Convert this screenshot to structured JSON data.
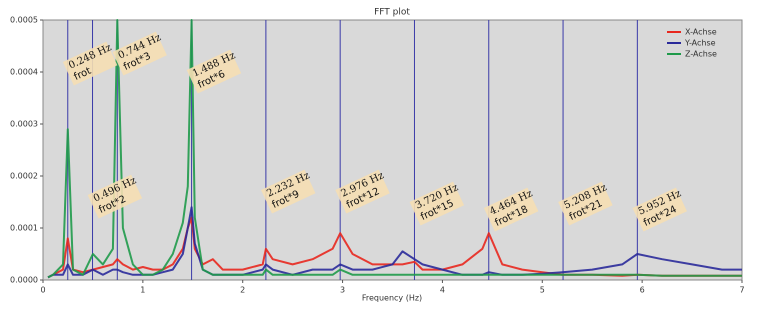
{
  "chart_data": {
    "type": "line",
    "title": "FFT plot",
    "xlabel": "Frequency (Hz)",
    "xlim": [
      0,
      7
    ],
    "xticks": [
      0,
      1,
      2,
      3,
      4,
      5,
      6,
      7
    ],
    "ylim": [
      0,
      0.0005
    ],
    "yticks": [
      {
        "value": 0,
        "label": "0.0000"
      },
      {
        "value": 0.0001,
        "label": "0.0001"
      },
      {
        "value": 0.0002,
        "label": "0.0002"
      },
      {
        "value": 0.0003,
        "label": "0.0003"
      },
      {
        "value": 0.0004,
        "label": "0.0004"
      },
      {
        "value": 0.0005,
        "label": "0.0005"
      }
    ],
    "legend": "upper right",
    "harmonic_line_color": "#3a3aa8",
    "harmonics": [
      {
        "value": 0.248,
        "label": "0.248 Hz",
        "name": "frot"
      },
      {
        "value": 0.496,
        "label": "0.496 Hz",
        "name": "frot*2"
      },
      {
        "value": 0.744,
        "label": "0.744 Hz",
        "name": "frot*3"
      },
      {
        "value": 1.488,
        "label": "1.488 Hz",
        "name": "frot*6"
      },
      {
        "value": 2.232,
        "label": "2.232 Hz",
        "name": "frot*9"
      },
      {
        "value": 2.976,
        "label": "2.976 Hz",
        "name": "frot*12"
      },
      {
        "value": 3.72,
        "label": "3.720 Hz",
        "name": "frot*15"
      },
      {
        "value": 4.464,
        "label": "4.464 Hz",
        "name": "frot*18"
      },
      {
        "value": 5.208,
        "label": "5.208 Hz",
        "name": "frot*21"
      },
      {
        "value": 5.952,
        "label": "5.952 Hz",
        "name": "frot*24"
      }
    ],
    "x": [
      0.05,
      0.1,
      0.2,
      0.248,
      0.3,
      0.4,
      0.5,
      0.6,
      0.7,
      0.744,
      0.8,
      0.9,
      1.0,
      1.1,
      1.2,
      1.3,
      1.4,
      1.45,
      1.488,
      1.52,
      1.6,
      1.7,
      1.8,
      2.0,
      2.2,
      2.232,
      2.3,
      2.5,
      2.7,
      2.9,
      2.976,
      3.1,
      3.3,
      3.5,
      3.6,
      3.72,
      3.8,
      4.0,
      4.2,
      4.4,
      4.464,
      4.6,
      4.8,
      5.0,
      5.2,
      5.5,
      5.8,
      5.952,
      6.2,
      6.5,
      6.8,
      7.0
    ],
    "series": [
      {
        "name": "X-Achse",
        "color": "#e8271e",
        "values": [
          5e-06,
          1e-05,
          2e-05,
          8e-05,
          2e-05,
          1.5e-05,
          2e-05,
          2.5e-05,
          3e-05,
          4e-05,
          3e-05,
          2e-05,
          2.5e-05,
          2e-05,
          2e-05,
          3e-05,
          6e-05,
          0.0001,
          0.00012,
          6e-05,
          3e-05,
          4e-05,
          2e-05,
          2e-05,
          3e-05,
          6e-05,
          4e-05,
          3e-05,
          4e-05,
          6e-05,
          9e-05,
          5e-05,
          3e-05,
          3e-05,
          3e-05,
          3.5e-05,
          2e-05,
          2e-05,
          3e-05,
          6e-05,
          9e-05,
          3e-05,
          2e-05,
          1.5e-05,
          1e-05,
          1e-05,
          8e-06,
          1e-05,
          8e-06,
          8e-06,
          8e-06,
          8e-06
        ]
      },
      {
        "name": "Y-Achse",
        "color": "#2a2a9a",
        "values": [
          5e-06,
          1e-05,
          1e-05,
          3e-05,
          1e-05,
          1e-05,
          2e-05,
          1e-05,
          2e-05,
          2e-05,
          1.5e-05,
          1e-05,
          1e-05,
          1e-05,
          1.5e-05,
          2e-05,
          5e-05,
          0.0001,
          0.00014,
          7e-05,
          2e-05,
          1e-05,
          1e-05,
          1e-05,
          2e-05,
          3e-05,
          2e-05,
          1e-05,
          2e-05,
          2e-05,
          3e-05,
          2e-05,
          2e-05,
          3e-05,
          5.5e-05,
          4e-05,
          3e-05,
          2e-05,
          1e-05,
          1e-05,
          1.5e-05,
          1e-05,
          1e-05,
          1.2e-05,
          1.5e-05,
          2e-05,
          3e-05,
          5e-05,
          4e-05,
          3e-05,
          2e-05,
          2e-05
        ]
      },
      {
        "name": "Z-Achse",
        "color": "#1f9a4a",
        "values": [
          5e-06,
          1e-05,
          3e-05,
          0.00029,
          2e-05,
          1e-05,
          5e-05,
          3e-05,
          6e-05,
          0.0005,
          0.0001,
          3e-05,
          1e-05,
          1e-05,
          2e-05,
          5e-05,
          0.00011,
          0.00018,
          0.0005,
          0.00012,
          2e-05,
          1e-05,
          1e-05,
          1e-05,
          1e-05,
          2e-05,
          1e-05,
          1e-05,
          1e-05,
          1e-05,
          2e-05,
          1e-05,
          1e-05,
          1e-05,
          1e-05,
          1e-05,
          1e-05,
          1e-05,
          1e-05,
          1e-05,
          1e-05,
          1e-05,
          1e-05,
          1e-05,
          1e-05,
          1e-05,
          1e-05,
          1e-05,
          8e-06,
          8e-06,
          8e-06,
          8e-06
        ]
      }
    ]
  }
}
